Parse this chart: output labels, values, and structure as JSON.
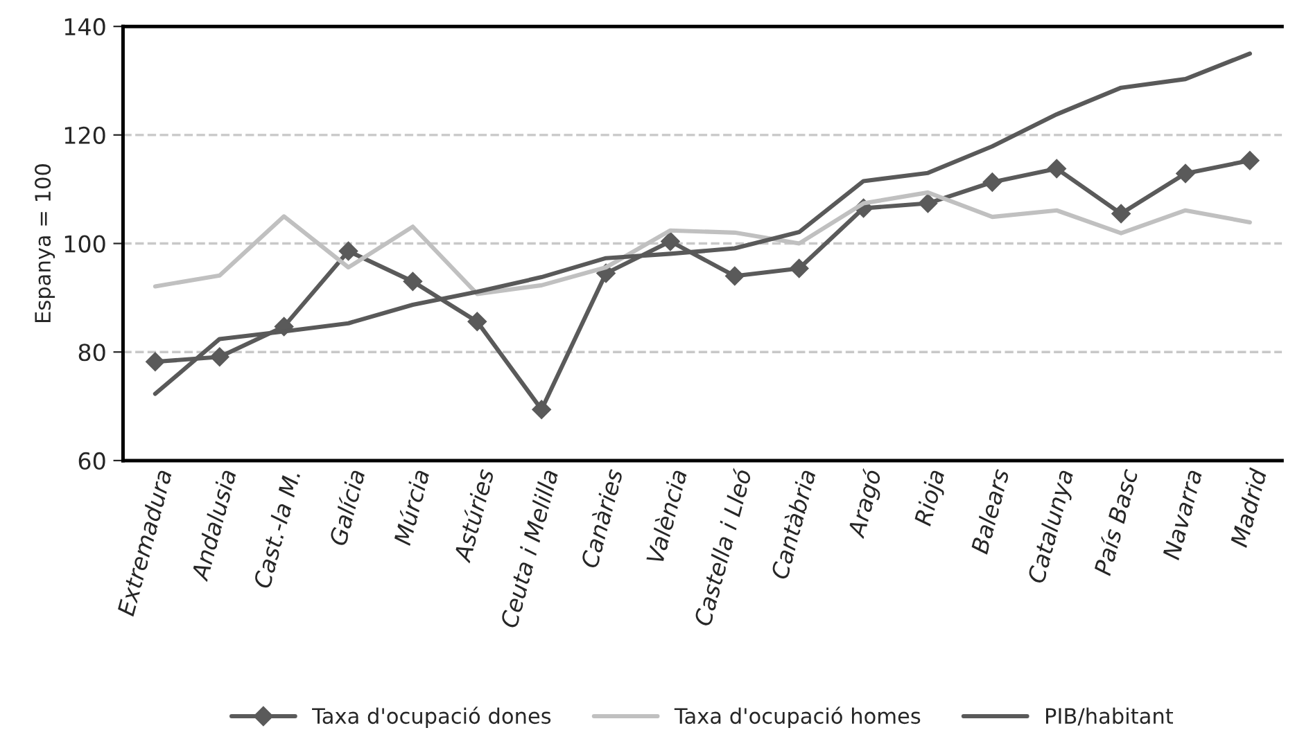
{
  "chart_data": {
    "type": "line",
    "ylabel": "Espanya = 100",
    "categories": [
      "Extremadura",
      "Andalusia",
      "Cast.-la M.",
      "Galícia",
      "Múrcia",
      "Astúries",
      "Ceuta i Melilla",
      "Canàries",
      "València",
      "Castella i Lleó",
      "Cantàbria",
      "Aragó",
      "Rioja",
      "Balears",
      "Catalunya",
      "País Basc",
      "Navarra",
      "Madrid"
    ],
    "series": [
      {
        "name": "Taxa d'ocupació dones",
        "color": "#5a5a5a",
        "marker": "diamond",
        "values": [
          78.2,
          79.1,
          84.7,
          98.6,
          93.0,
          85.6,
          69.4,
          94.5,
          100.4,
          94.0,
          95.4,
          106.5,
          107.4,
          111.3,
          113.8,
          105.5,
          112.9,
          115.3
        ]
      },
      {
        "name": "Taxa d'ocupació homes",
        "color": "#c0c0c0",
        "values": [
          92.1,
          94.1,
          105.0,
          95.6,
          103.1,
          90.7,
          92.3,
          95.6,
          102.4,
          102.0,
          100.0,
          107.4,
          109.4,
          104.9,
          106.1,
          101.9,
          106.1,
          103.9
        ]
      },
      {
        "name": "PIB/habitant",
        "color": "#595959",
        "values": [
          72.3,
          82.4,
          83.8,
          85.3,
          88.7,
          91.1,
          93.8,
          97.3,
          98.1,
          99.1,
          102.1,
          111.5,
          113.0,
          117.9,
          123.8,
          128.7,
          130.3,
          135.0
        ]
      }
    ],
    "ylim": [
      60,
      140
    ],
    "yticks": [
      60,
      80,
      100,
      120,
      140
    ],
    "grid": "y",
    "legend": "bottom",
    "line_style": "solid"
  }
}
